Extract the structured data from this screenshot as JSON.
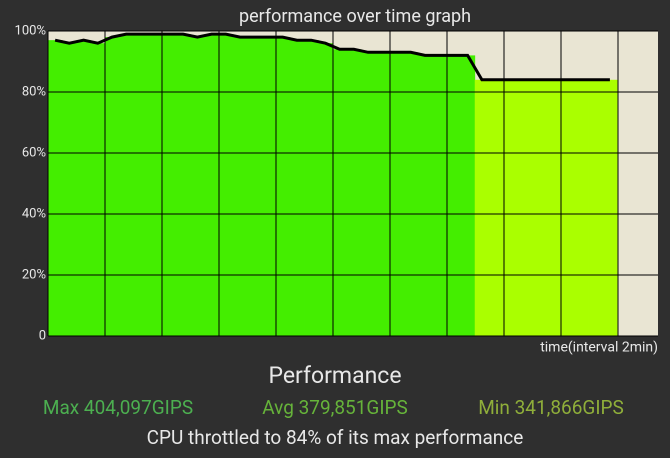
{
  "chart_data": {
    "type": "bar-line",
    "title": "performance over time graph",
    "x_label": "time(interval 2min)",
    "values": [
      97,
      96,
      97,
      96,
      98,
      99,
      99,
      99,
      99,
      99,
      98,
      99,
      99,
      98,
      98,
      98,
      98,
      97,
      97,
      96,
      94,
      94,
      93,
      93,
      93,
      93,
      92,
      92,
      92,
      92,
      84,
      84,
      84,
      84,
      84,
      84,
      84,
      84,
      84,
      84
    ],
    "colors": [
      "#44ee00",
      "#44ee00",
      "#44ee00",
      "#44ee00",
      "#44ee00",
      "#44ee00",
      "#44ee00",
      "#44ee00",
      "#44ee00",
      "#44ee00",
      "#44ee00",
      "#44ee00",
      "#44ee00",
      "#44ee00",
      "#44ee00",
      "#44ee00",
      "#44ee00",
      "#44ee00",
      "#44ee00",
      "#44ee00",
      "#44ee00",
      "#44ee00",
      "#44ee00",
      "#44ee00",
      "#44ee00",
      "#44ee00",
      "#44ee00",
      "#44ee00",
      "#44ee00",
      "#44ee00",
      "#aaff00",
      "#aaff00",
      "#aaff00",
      "#aaff00",
      "#aaff00",
      "#aaff00",
      "#aaff00",
      "#aaff00",
      "#aaff00",
      "#aaff00"
    ],
    "line_color": "#000000",
    "ylim": [
      0,
      100
    ],
    "yticks": [
      0,
      {
        "value": 20,
        "label": "20%"
      },
      {
        "value": 40,
        "label": "40%"
      },
      {
        "value": 60,
        "label": "60%"
      },
      {
        "value": 80,
        "label": "80%"
      },
      {
        "value": 100,
        "label": "100%"
      }
    ],
    "grid": true
  },
  "summary": {
    "heading": "Performance",
    "max": "Max 404,097GIPS",
    "avg": "Avg 379,851GIPS",
    "min": "Min 341,866GIPS",
    "note": "CPU throttled to 84% of its max performance"
  }
}
